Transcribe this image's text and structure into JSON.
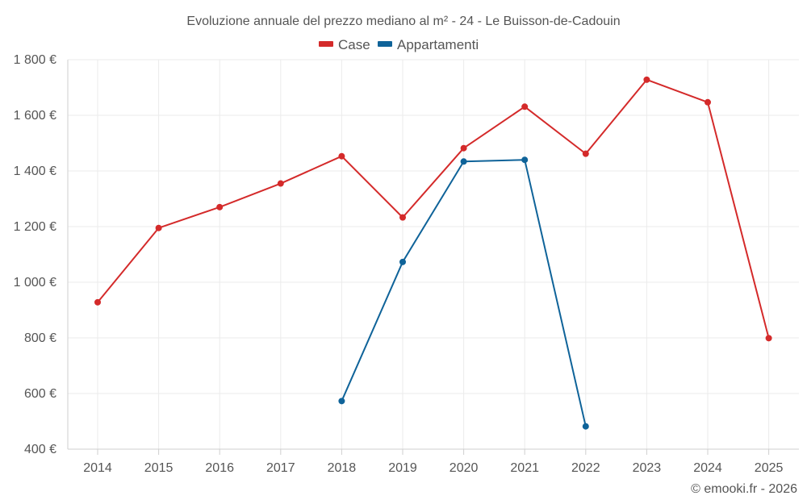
{
  "chart_data": {
    "type": "line",
    "title": "Evoluzione annuale del prezzo mediano al m² - 24 - Le Buisson-de-Cadouin",
    "categories": [
      "2014",
      "2015",
      "2016",
      "2017",
      "2018",
      "2019",
      "2020",
      "2021",
      "2022",
      "2023",
      "2024",
      "2025"
    ],
    "series": [
      {
        "name": "Case",
        "color": "#d42a2a",
        "values": [
          928,
          1195,
          1270,
          1355,
          1453,
          1233,
          1482,
          1631,
          1462,
          1728,
          1647,
          799
        ]
      },
      {
        "name": "Appartamenti",
        "color": "#0f6399",
        "values": [
          null,
          null,
          null,
          null,
          573,
          1073,
          1434,
          1440,
          482,
          null,
          null,
          null
        ]
      }
    ],
    "ylim": [
      400,
      1800
    ],
    "yticks": [
      400,
      600,
      800,
      1000,
      1200,
      1400,
      1600,
      1800
    ],
    "ytick_labels": [
      "400 €",
      "600 €",
      "800 €",
      "1 000 €",
      "1 200 €",
      "1 400 €",
      "1 600 €",
      "1 800 €"
    ],
    "grid": true,
    "legend_position": "top-center",
    "xlabel": "",
    "ylabel": ""
  },
  "credit": "© emooki.fr - 2026"
}
